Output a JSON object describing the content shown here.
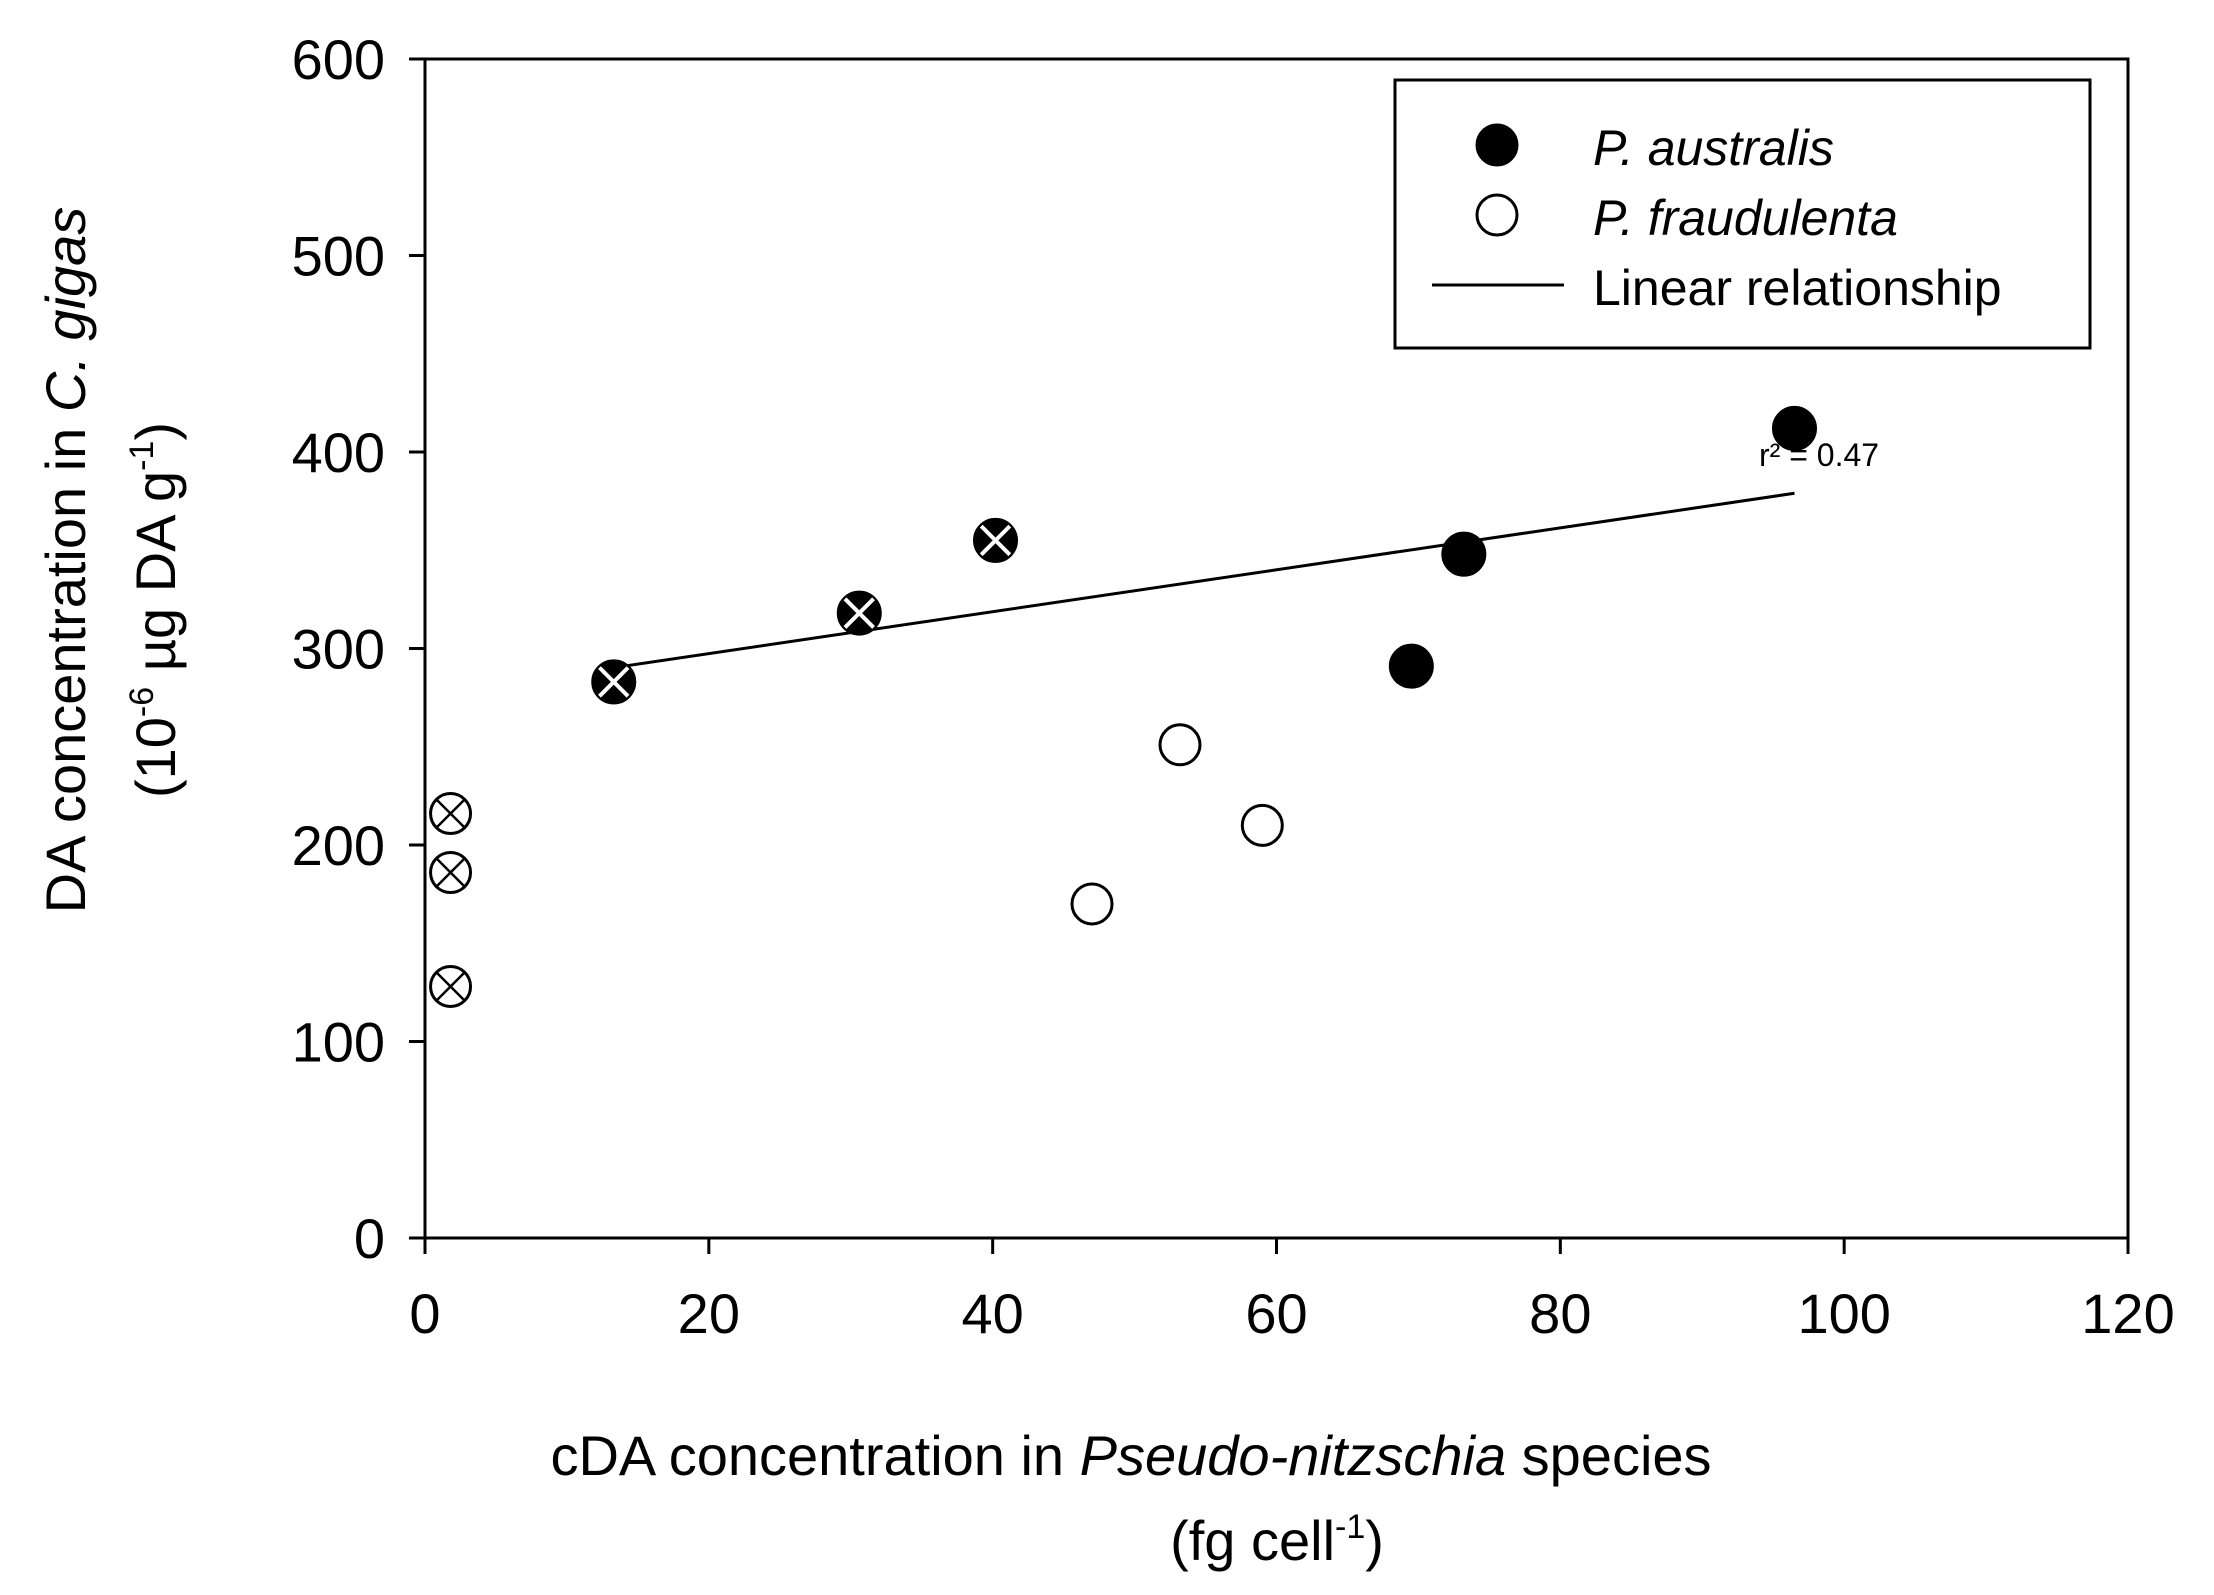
{
  "chart_data": {
    "type": "scatter",
    "xlabel": {
      "prefix": "cDA concentration in ",
      "italic": "Pseudo-nitzschia",
      "suffix": " species",
      "line2_prefix": "(fg cell",
      "line2_sup": "-1",
      "line2_suffix": ")"
    },
    "ylabel": {
      "line1_prefix": "DA concentration in ",
      "line1_italic": "C. gigas",
      "line2_prefix": "(10",
      "line2_sup1": "-6",
      "line2_mid": " µg DA g",
      "line2_sup2": "-1",
      "line2_suffix": ")"
    },
    "xlim": [
      0,
      120
    ],
    "ylim": [
      0,
      600
    ],
    "xticks": [
      0,
      20,
      40,
      60,
      80,
      100,
      120
    ],
    "yticks": [
      0,
      100,
      200,
      300,
      400,
      500,
      600
    ],
    "legend": {
      "position": "top-right",
      "entries": [
        {
          "label": "P. australis",
          "italic": true,
          "marker": "filled-circle"
        },
        {
          "label": "P. fraudulenta",
          "italic": true,
          "marker": "open-circle"
        },
        {
          "label": "Linear relationship",
          "italic": false,
          "marker": "line"
        }
      ]
    },
    "series": [
      {
        "name": "P. australis",
        "marker": "filled",
        "points": [
          [
            69.5,
            291
          ],
          [
            73.2,
            348
          ],
          [
            96.5,
            412
          ]
        ]
      },
      {
        "name": "P. fraudulenta",
        "marker": "open",
        "points": [
          [
            47,
            170
          ],
          [
            53.2,
            251
          ],
          [
            59,
            210
          ]
        ]
      },
      {
        "name": "filled-crossed",
        "marker": "filled-crossed",
        "points": [
          [
            13.3,
            283
          ],
          [
            30.6,
            318
          ],
          [
            40.2,
            355
          ]
        ]
      },
      {
        "name": "open-crossed",
        "marker": "open-crossed",
        "points": [
          [
            1.8,
            216
          ],
          [
            1.8,
            186
          ],
          [
            1.8,
            128
          ]
        ]
      }
    ],
    "regression": {
      "x1": 14,
      "y1": 291,
      "x2": 96.5,
      "y2": 379,
      "label": "r² = 0.47",
      "label_at": [
        94,
        393
      ]
    }
  }
}
